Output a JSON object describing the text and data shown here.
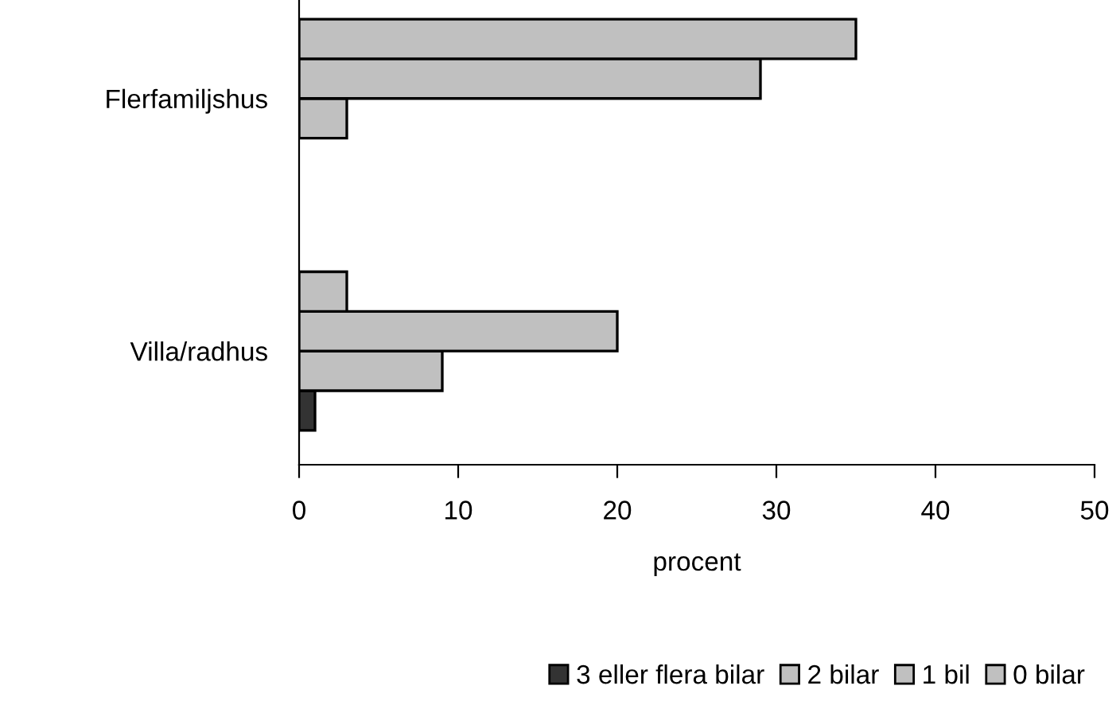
{
  "chart_data": {
    "type": "bar",
    "orientation": "horizontal",
    "xlabel": "procent",
    "categories": [
      "Flerfamiljshus",
      "Villa/radhus"
    ],
    "series": [
      {
        "name": "3 eller flera bilar",
        "color": "#333333",
        "values": [
          null,
          1
        ]
      },
      {
        "name": "2 bilar",
        "color": "#c0c0c0",
        "values": [
          3,
          9
        ]
      },
      {
        "name": "1 bil",
        "color": "#c0c0c0",
        "values": [
          29,
          20
        ]
      },
      {
        "name": "0 bilar",
        "color": "#c0c0c0",
        "values": [
          35,
          3
        ]
      }
    ],
    "xlim": [
      0,
      50
    ],
    "xticks": [
      0,
      10,
      20,
      30,
      40,
      50
    ],
    "grid": false,
    "legend": "bottom"
  }
}
